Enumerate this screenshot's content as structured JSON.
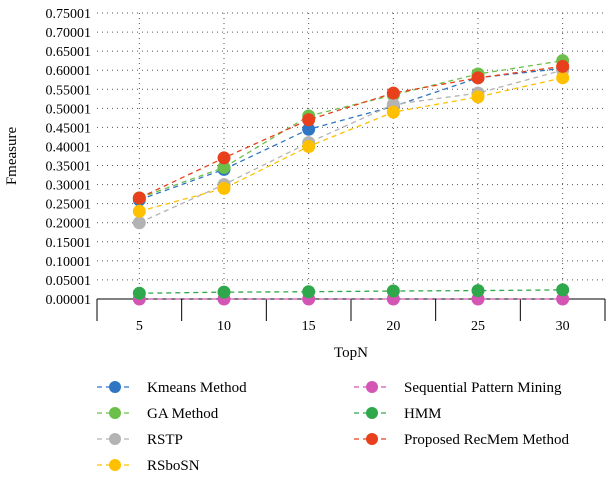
{
  "chart_data": {
    "type": "line",
    "title": "",
    "xlabel": "TopN",
    "ylabel": "Fmeasure",
    "x": [
      5,
      10,
      15,
      20,
      25,
      30
    ],
    "ylim": [
      1e-05,
      0.75001
    ],
    "yticks": [
      "0.00001",
      "0.05001",
      "0.10001",
      "0.15001",
      "0.20001",
      "0.25001",
      "0.30001",
      "0.35001",
      "0.40001",
      "0.45001",
      "0.50001",
      "0.55001",
      "0.60001",
      "0.65001",
      "0.70001",
      "0.75001"
    ],
    "grid": "dotted",
    "legend_position": "bottom",
    "series": [
      {
        "name": "Kmeans Method",
        "color": "#2e75c4",
        "values": [
          0.26,
          0.34,
          0.445,
          0.505,
          0.58,
          0.605
        ]
      },
      {
        "name": "GA Method",
        "color": "#6cc04a",
        "values": [
          0.265,
          0.345,
          0.48,
          0.535,
          0.59,
          0.625
        ]
      },
      {
        "name": "RSTP",
        "color": "#b3b3b3",
        "values": [
          0.2,
          0.3,
          0.41,
          0.51,
          0.54,
          0.6
        ]
      },
      {
        "name": "RSboSN",
        "color": "#ffc000",
        "values": [
          0.23,
          0.29,
          0.4,
          0.49,
          0.53,
          0.58
        ]
      },
      {
        "name": "Sequential Pattern Mining",
        "color": "#d455b4",
        "values": [
          0.0,
          0.0,
          0.0,
          0.0,
          0.0,
          0.0
        ]
      },
      {
        "name": "HMM",
        "color": "#2ea84a",
        "values": [
          0.015,
          0.018,
          0.019,
          0.021,
          0.022,
          0.024
        ]
      },
      {
        "name": "Proposed RecMem Method",
        "color": "#e8401c",
        "values": [
          0.265,
          0.37,
          0.47,
          0.54,
          0.58,
          0.61
        ]
      }
    ]
  }
}
